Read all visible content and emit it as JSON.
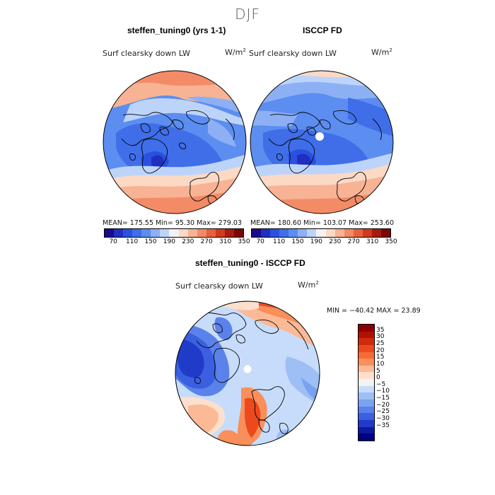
{
  "season_title": "DJF",
  "panel_left": {
    "title": "steffen_tuning0 (yrs 1-1)",
    "variable": "Surf clearsky down LW",
    "units_base": "W/m",
    "units_exp": "2",
    "stats": "MEAN=  175.55   Min=    95.30    Max=  279.03"
  },
  "panel_right": {
    "title": "ISCCP FD",
    "variable": "Surf clearsky down LW",
    "units_base": "W/m",
    "units_exp": "2",
    "stats": "MEAN=  180.60   Min=  103.07    Max=  253.60"
  },
  "panel_diff": {
    "title": "steffen_tuning0 - ISCCP FD",
    "variable": "Surf clearsky down LW",
    "units_base": "W/m",
    "units_exp": "2",
    "stats": "MIN = −40.42  MAX =   23.89"
  },
  "abs_colorbar": {
    "colors": [
      "#1a0a8c",
      "#1f2fbf",
      "#2b50df",
      "#3f6ee8",
      "#5c8df0",
      "#8db0f5",
      "#bdd4fa",
      "#f2f2f5",
      "#fbd9c5",
      "#f7b394",
      "#f28b66",
      "#e7603f",
      "#cf3a22",
      "#a81c10",
      "#7a0505"
    ],
    "ticks": [
      "70",
      "110",
      "150",
      "190",
      "230",
      "270",
      "310",
      "350"
    ]
  },
  "diff_colorbar": {
    "colors": [
      "#8b0000",
      "#b21000",
      "#d42a0c",
      "#ec4a1e",
      "#f56b35",
      "#f98f5a",
      "#fbb996",
      "#fde0cc",
      "#f3f3f6",
      "#c7dcfa",
      "#9dbff5",
      "#7aa2f0",
      "#5a82ea",
      "#3a5fe0",
      "#1f3bc8",
      "#0c1aa0",
      "#000080"
    ],
    "ticks": [
      "35",
      "30",
      "25",
      "20",
      "15",
      "10",
      "5",
      "0",
      "−5",
      "−10",
      "−15",
      "−20",
      "−25",
      "−30",
      "−35"
    ]
  }
}
